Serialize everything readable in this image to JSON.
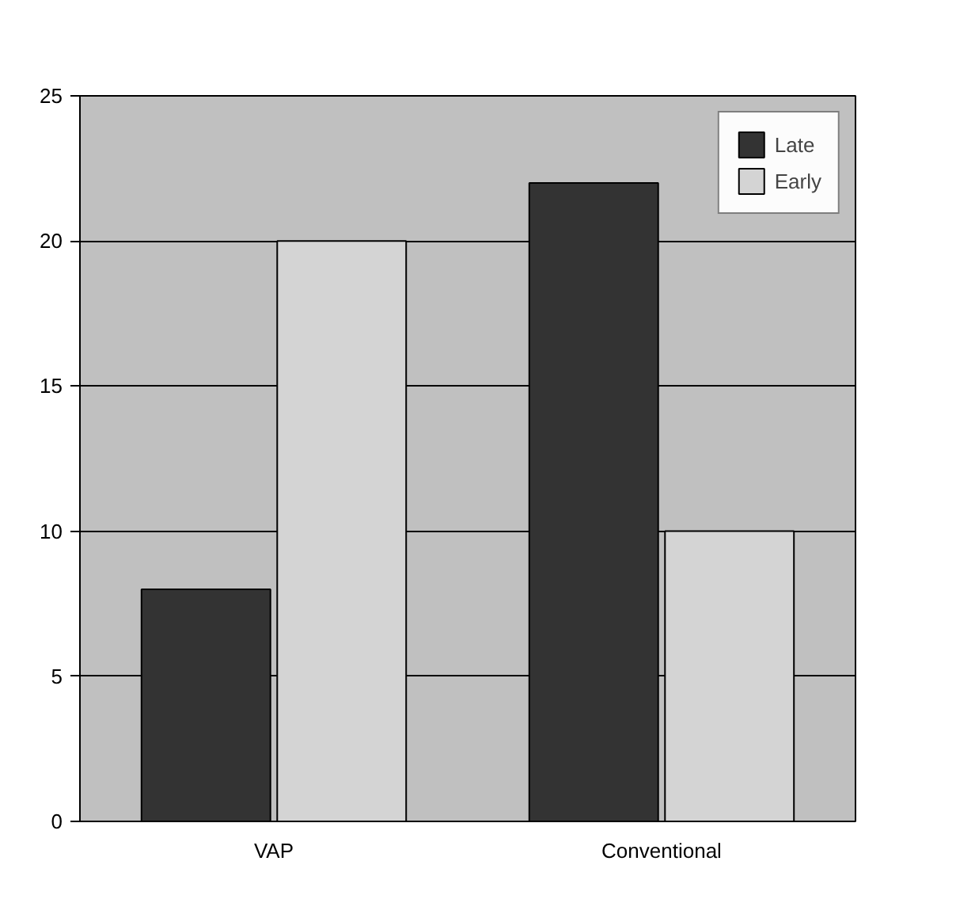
{
  "chart_data": {
    "type": "bar",
    "categories": [
      "VAP",
      "Conventional"
    ],
    "series": [
      {
        "name": "Late",
        "color": "#333333",
        "values": [
          8,
          22
        ]
      },
      {
        "name": "Early",
        "color": "#d4d4d4",
        "values": [
          20,
          10
        ]
      }
    ],
    "ylim": [
      0,
      25
    ],
    "yticks": [
      0,
      5,
      10,
      15,
      20,
      25
    ],
    "grid": "y",
    "legend": "top right"
  }
}
